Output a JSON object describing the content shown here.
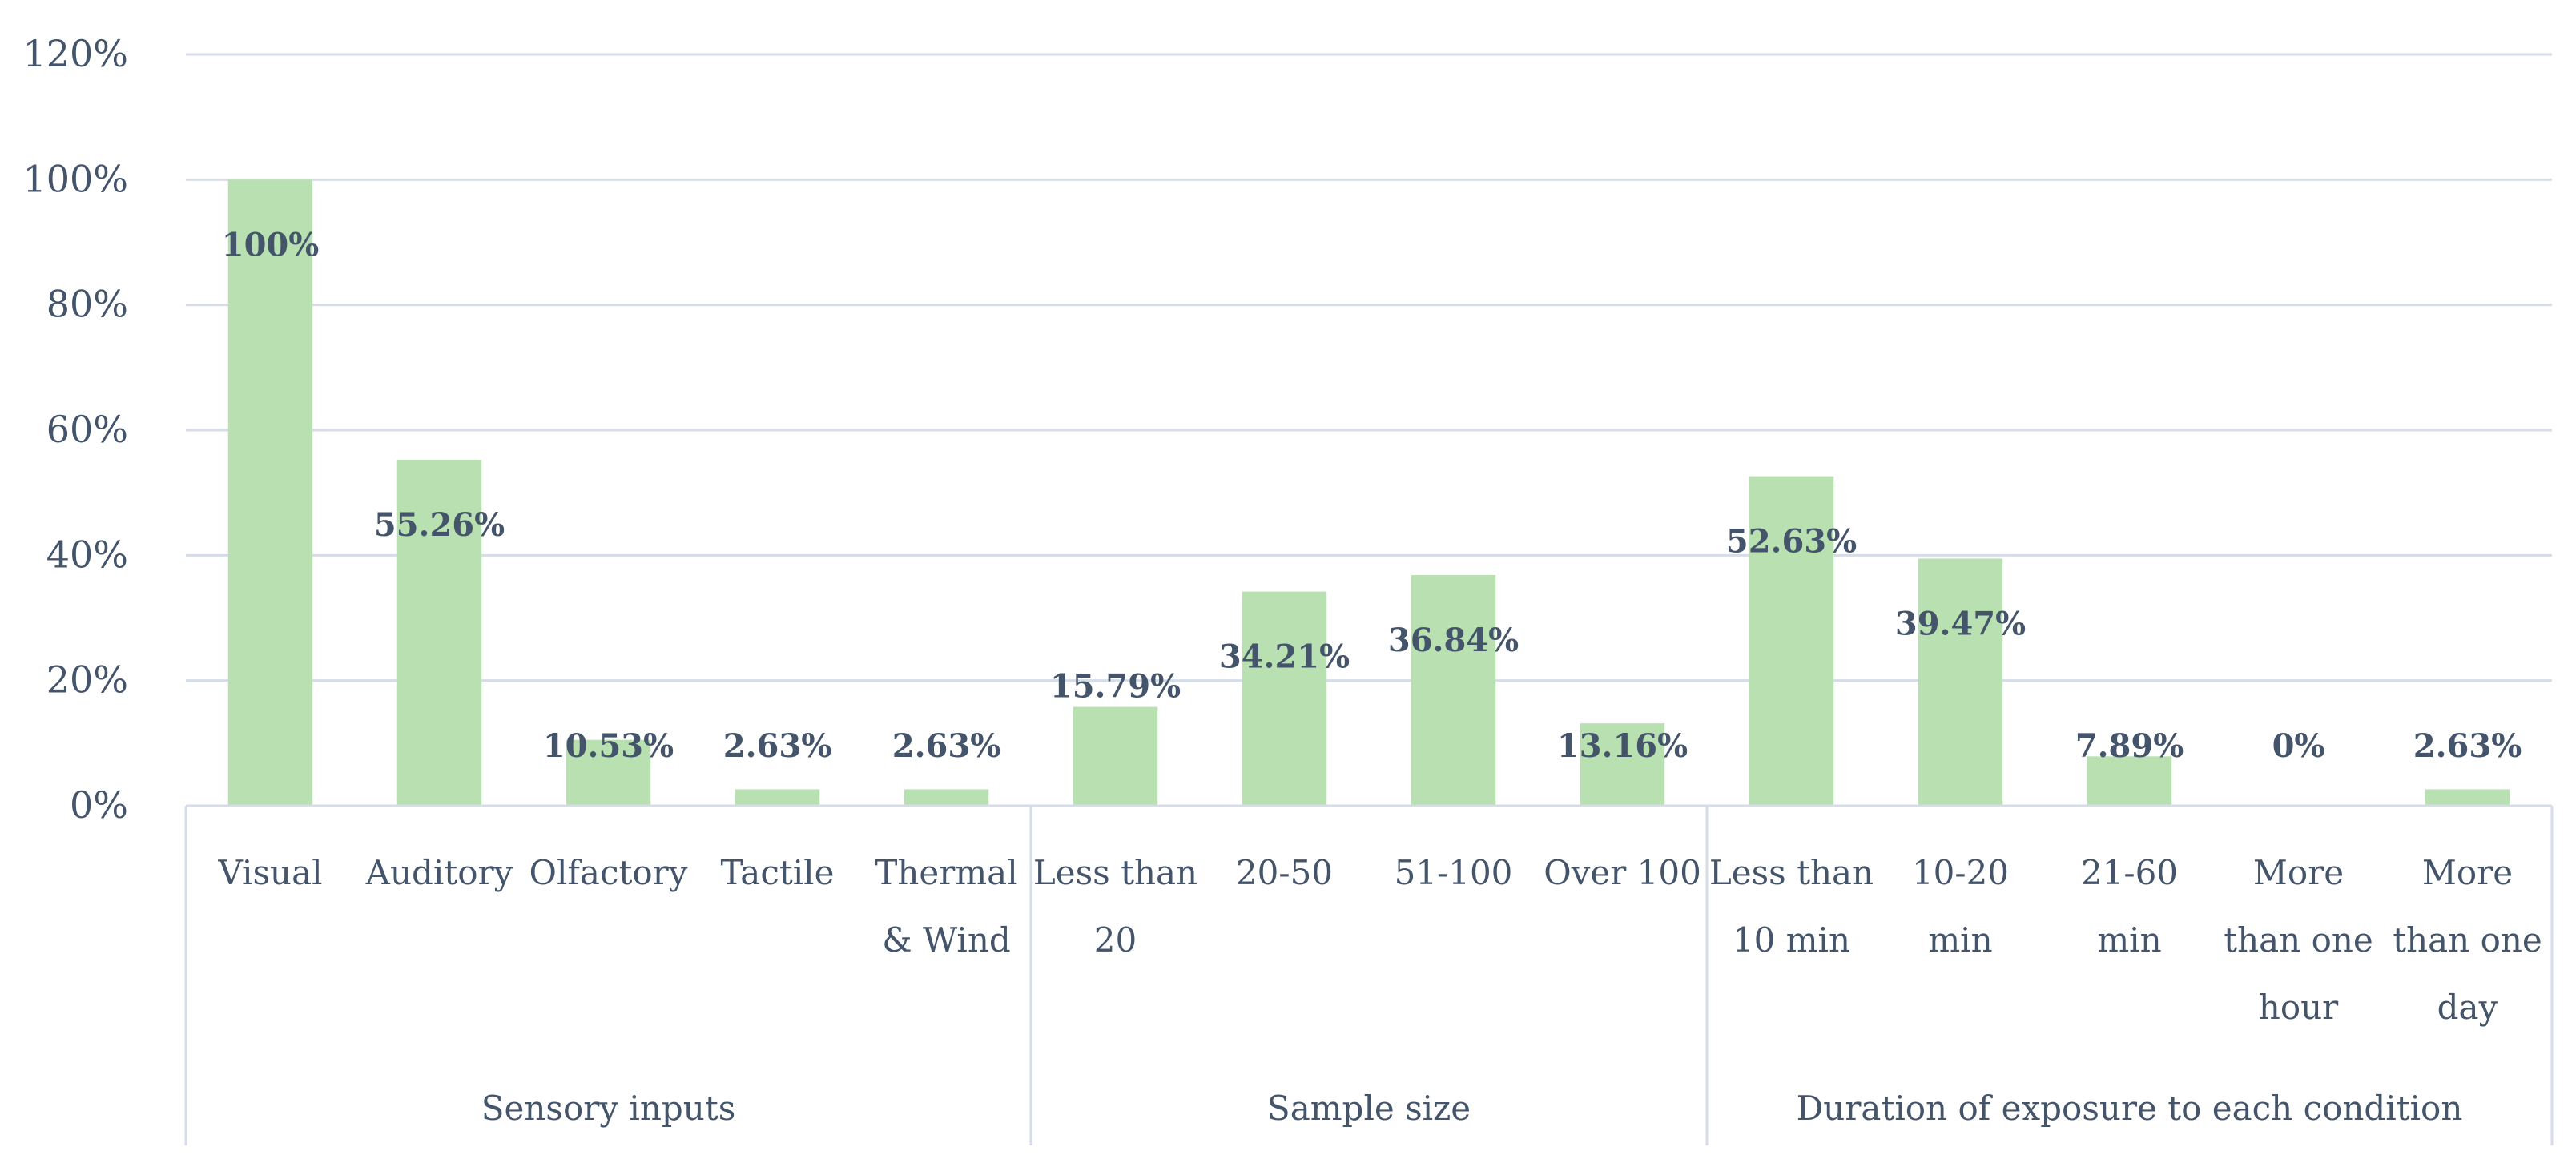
{
  "chart_data": {
    "type": "bar",
    "ylim": [
      0,
      120
    ],
    "yticks": [
      "0%",
      "20%",
      "40%",
      "60%",
      "80%",
      "100%",
      "120%"
    ],
    "grid": true,
    "bar_color": "#b9e0b0",
    "text_color": "#44546a",
    "grid_color": "#d6dde8",
    "groups": [
      {
        "name": "Sensory inputs",
        "categories": [
          {
            "lines": [
              "Visual"
            ],
            "value": 100,
            "label": "100%"
          },
          {
            "lines": [
              "Auditory"
            ],
            "value": 55.26,
            "label": "55.26%"
          },
          {
            "lines": [
              "Olfactory"
            ],
            "value": 10.53,
            "label": "10.53%"
          },
          {
            "lines": [
              "Tactile"
            ],
            "value": 2.63,
            "label": "2.63%"
          },
          {
            "lines": [
              "Thermal",
              "& Wind"
            ],
            "value": 2.63,
            "label": "2.63%"
          }
        ]
      },
      {
        "name": "Sample size",
        "categories": [
          {
            "lines": [
              "Less than",
              "20"
            ],
            "value": 15.79,
            "label": "15.79%"
          },
          {
            "lines": [
              "20-50"
            ],
            "value": 34.21,
            "label": "34.21%"
          },
          {
            "lines": [
              "51-100"
            ],
            "value": 36.84,
            "label": "36.84%"
          },
          {
            "lines": [
              "Over 100"
            ],
            "value": 13.16,
            "label": "13.16%"
          }
        ]
      },
      {
        "name": "Duration of exposure to each condition",
        "categories": [
          {
            "lines": [
              "Less than",
              "10 min"
            ],
            "value": 52.63,
            "label": "52.63%"
          },
          {
            "lines": [
              "10-20",
              "min"
            ],
            "value": 39.47,
            "label": "39.47%"
          },
          {
            "lines": [
              "21-60",
              "min"
            ],
            "value": 7.89,
            "label": "7.89%"
          },
          {
            "lines": [
              "More",
              "than one",
              "hour"
            ],
            "value": 0,
            "label": "0%"
          },
          {
            "lines": [
              "More",
              "than one",
              "day"
            ],
            "value": 2.63,
            "label": "2.63%"
          }
        ]
      }
    ]
  }
}
